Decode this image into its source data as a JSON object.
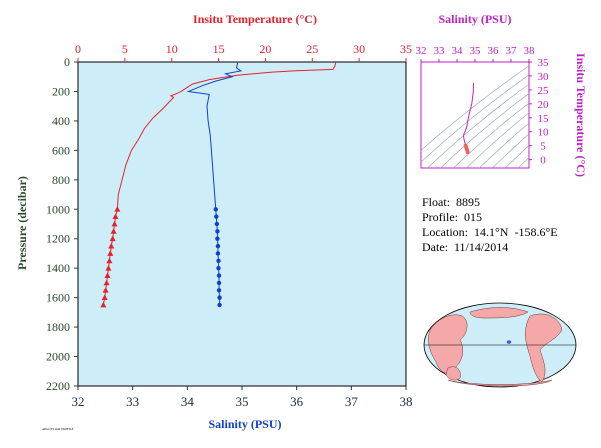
{
  "colors": {
    "plot_bg": "#cdeef8",
    "temperature": "#e8202a",
    "salinity": "#1040c8",
    "salinity_top_axis": "#c020c8",
    "tick_labels_left": "#2a4a2a",
    "axis_bottom": "#203040"
  },
  "main_chart": {
    "top_axis_title": "Insitu Temperature (°C)",
    "bottom_axis_title": "Salinity (PSU)",
    "left_axis_title": "Pressure (decibar)",
    "top_ticks": [
      "0",
      "5",
      "10",
      "15",
      "20",
      "25",
      "30",
      "35"
    ],
    "bottom_ticks": [
      "32",
      "33",
      "34",
      "35",
      "36",
      "37",
      "38"
    ],
    "left_ticks": [
      "0",
      "200",
      "400",
      "600",
      "800",
      "1000",
      "1200",
      "1400",
      "1600",
      "1800",
      "2000",
      "2200"
    ],
    "footer_note": "ARGO FLOAT PROFILE"
  },
  "chart_data": [
    {
      "type": "line",
      "title": "",
      "y_axis": {
        "label": "Pressure (decibar)",
        "range": [
          2200,
          0
        ],
        "inverted": true
      },
      "x_axis_top": {
        "label": "Insitu Temperature (°C)",
        "range": [
          0,
          35
        ]
      },
      "x_axis_bottom": {
        "label": "Salinity (PSU)",
        "range": [
          32,
          38
        ]
      },
      "grid": false,
      "series": [
        {
          "name": "",
          "axis": "top",
          "pressure": [
            5,
            30,
            50,
            60,
            70,
            90,
            120,
            150,
            200,
            215,
            230,
            240,
            280,
            320,
            380,
            450,
            520,
            600,
            700,
            800,
            900,
            1000
          ],
          "values": [
            27.5,
            27.4,
            27.2,
            23.0,
            20.5,
            17.0,
            14.0,
            12.2,
            11.0,
            10.5,
            9.9,
            10.2,
            9.6,
            9.0,
            8.0,
            7.1,
            6.5,
            5.7,
            5.1,
            4.7,
            4.3,
            4.2
          ]
        },
        {
          "name": "",
          "axis": "top",
          "marker": "triangle",
          "pressure": [
            1000,
            1050,
            1100,
            1150,
            1200,
            1250,
            1300,
            1350,
            1400,
            1450,
            1500,
            1550,
            1600,
            1650
          ],
          "values": [
            4.2,
            4.0,
            3.9,
            3.8,
            3.7,
            3.55,
            3.45,
            3.35,
            3.25,
            3.15,
            3.05,
            2.95,
            2.85,
            2.7
          ]
        },
        {
          "name": "",
          "axis": "bottom",
          "pressure": [
            5,
            40,
            60,
            80,
            100,
            130,
            160,
            200,
            220,
            260,
            300,
            400,
            500,
            600,
            700,
            800,
            900,
            1000
          ],
          "values": [
            34.92,
            34.9,
            34.98,
            34.7,
            34.82,
            34.52,
            34.28,
            34.02,
            34.4,
            34.38,
            34.36,
            34.38,
            34.42,
            34.44,
            34.46,
            34.48,
            34.5,
            34.52
          ]
        },
        {
          "name": "",
          "axis": "bottom",
          "marker": "circle",
          "pressure": [
            1000,
            1050,
            1100,
            1150,
            1200,
            1250,
            1300,
            1350,
            1400,
            1450,
            1500,
            1550,
            1600,
            1650
          ],
          "values": [
            34.52,
            34.53,
            34.54,
            34.55,
            34.55,
            34.56,
            34.56,
            34.57,
            34.57,
            34.58,
            34.58,
            34.58,
            34.59,
            34.59
          ]
        }
      ]
    },
    {
      "type": "scatter",
      "title": "",
      "x_axis": {
        "label": "Salinity (PSU)",
        "range": [
          32,
          38
        ]
      },
      "y_axis": {
        "label": "Insitu Temperature (°C)",
        "range": [
          -3,
          35
        ]
      },
      "x_ticks": [
        "32",
        "33",
        "34",
        "35",
        "36",
        "37",
        "38"
      ],
      "y_ticks": [
        "0",
        "5",
        "10",
        "15",
        "20",
        "25",
        "30",
        "35"
      ],
      "series": [
        {
          "name": "",
          "x": [
            34.92,
            34.9,
            34.82,
            34.7,
            34.6,
            34.55,
            34.5,
            34.45,
            34.4,
            34.36,
            34.4,
            34.44,
            34.48,
            34.52,
            34.56,
            34.59
          ],
          "y": [
            27.5,
            24.0,
            20.0,
            17.0,
            14.0,
            12.0,
            11.0,
            10.0,
            9.5,
            8.5,
            7.0,
            6.0,
            5.0,
            4.2,
            3.5,
            2.7
          ]
        }
      ]
    }
  ],
  "float_info": {
    "float_label": "Float:",
    "float_value": "8895",
    "profile_label": "Profile:",
    "profile_value": "015",
    "location_label": "Location:",
    "location_value": "14.1°N  -158.6°E",
    "date_label": "Date:",
    "date_value": "11/14/2014"
  },
  "map": {
    "marker_glyph": "*"
  }
}
